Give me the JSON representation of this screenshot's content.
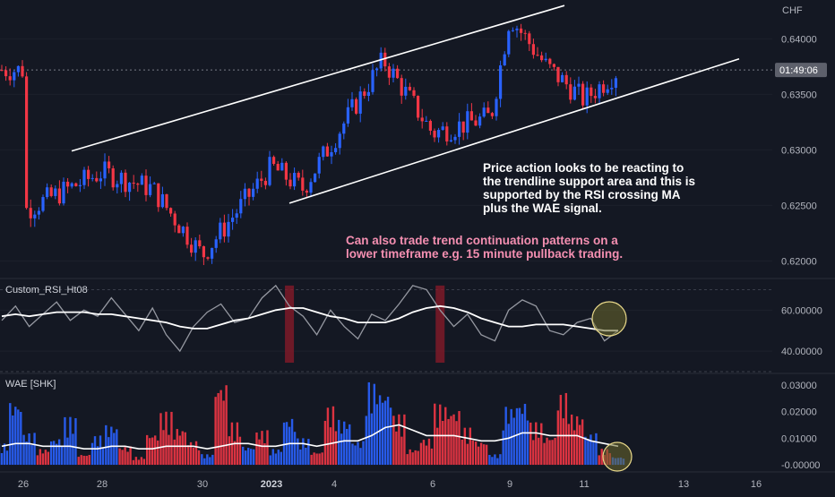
{
  "currency": "CHF",
  "current_time_badge": "01:49:06",
  "rsi_panel_label": "Custom_RSI_Ht08",
  "wae_panel_label": "WAE [SHK]",
  "annotation_white": "Price action looks to be reacting to\nthe trendline support area and this is\nsupported by the RSI crossing MA\nplus the WAE signal.",
  "annotation_pink": "Can also trade trend continuation patterns on a\nlower timeframe e.g. 15 minute pullback trading.",
  "colors": {
    "background": "#141823",
    "up": "#2962ff",
    "down": "#f23645",
    "rsi": "#9598a1",
    "ma": "#ffffff",
    "highlight": "#e8d88a",
    "note_pink": "#f48fb1"
  },
  "chart_data": [
    {
      "type": "candlestick",
      "title": "",
      "yaxis_ticks": [
        "0.62000",
        "0.62500",
        "0.63000",
        "0.63500",
        "0.64000"
      ],
      "ylim": [
        0.6185,
        0.6435
      ],
      "xaxis_ticks": [
        "26",
        "28",
        "30",
        "2023",
        "4",
        "6",
        "9",
        "11",
        "13",
        "16"
      ],
      "key_points": [
        {
          "x": "26",
          "y": 0.6245
        },
        {
          "x": "28",
          "y": 0.628
        },
        {
          "x": "29",
          "y": 0.6265
        },
        {
          "x": "30",
          "y": 0.6205
        },
        {
          "x": "2023",
          "y": 0.6285
        },
        {
          "x": "3",
          "y": 0.6265
        },
        {
          "x": "4",
          "y": 0.631
        },
        {
          "x": "5",
          "y": 0.6381
        },
        {
          "x": "6",
          "y": 0.6315
        },
        {
          "x": "8",
          "y": 0.633
        },
        {
          "x": "9",
          "y": 0.642
        },
        {
          "x": "10",
          "y": 0.6375
        },
        {
          "x": "11",
          "y": 0.6345
        },
        {
          "x": "11.5",
          "y": 0.6372
        }
      ],
      "trendlines": [
        {
          "name": "upper channel",
          "from": {
            "x": "27.5",
            "y": 0.6299
          },
          "to": {
            "x": "10.5",
            "y": 0.643
          }
        },
        {
          "name": "lower support",
          "from": {
            "x": "3.5",
            "y": 0.6252
          },
          "to": {
            "x": "15",
            "y": 0.6382
          }
        }
      ]
    },
    {
      "type": "line",
      "title": "Custom_RSI_Ht08",
      "yaxis_ticks": [
        "40.00000",
        "60.00000"
      ],
      "ylim": [
        30,
        75
      ],
      "series": [
        {
          "name": "",
          "role": "rsi",
          "color": "#9598a1",
          "values": [
            55,
            62,
            52,
            58,
            64,
            55,
            60,
            57,
            66,
            58,
            50,
            61,
            48,
            40,
            52,
            59,
            63,
            54,
            56,
            66,
            72,
            62,
            57,
            48,
            60,
            52,
            46,
            58,
            55,
            63,
            72,
            70,
            60,
            52,
            58,
            48,
            45,
            60,
            65,
            62,
            50,
            48,
            54,
            56,
            45,
            50
          ]
        },
        {
          "name": "",
          "role": "ma",
          "color": "#ffffff",
          "values": [
            57,
            58,
            57,
            58,
            59,
            59,
            59,
            58,
            58,
            57,
            56,
            55,
            54,
            52,
            51,
            51,
            53,
            55,
            56,
            58,
            60,
            61,
            61,
            59,
            57,
            56,
            54,
            54,
            54,
            56,
            59,
            61,
            62,
            61,
            59,
            56,
            54,
            52,
            52,
            53,
            53,
            53,
            52,
            51,
            50,
            50
          ]
        }
      ],
      "highlights": [
        {
          "x_index": 21
        },
        {
          "x_index": 32
        }
      ]
    },
    {
      "type": "bar",
      "title": "WAE [SHK]",
      "yaxis_ticks": [
        "-0.00000",
        "0.01000",
        "0.02000",
        "0.03000"
      ],
      "ylim": [
        -0.002,
        0.034
      ],
      "series": [
        {
          "name": "",
          "role": "histogram",
          "values": [
            0.008,
            0.024,
            0.012,
            0.006,
            0.01,
            0.018,
            0.004,
            0.011,
            0.015,
            0.007,
            0.003,
            0.012,
            0.02,
            0.014,
            0.009,
            0.004,
            0.031,
            0.016,
            0.007,
            0.013,
            0.006,
            0.018,
            0.01,
            0.005,
            0.022,
            0.017,
            0.009,
            0.031,
            0.028,
            0.019,
            0.006,
            0.01,
            0.023,
            0.021,
            0.014,
            0.009,
            0.004,
            0.022,
            0.024,
            0.016,
            0.011,
            0.027,
            0.019,
            0.012,
            0.006,
            0.003
          ],
          "directions": [
            "up",
            "up",
            "up",
            "down",
            "up",
            "up",
            "down",
            "up",
            "up",
            "down",
            "down",
            "down",
            "down",
            "down",
            "down",
            "up",
            "down",
            "down",
            "up",
            "down",
            "up",
            "up",
            "up",
            "down",
            "down",
            "up",
            "up",
            "up",
            "up",
            "down",
            "down",
            "down",
            "down",
            "down",
            "down",
            "down",
            "up",
            "up",
            "up",
            "down",
            "down",
            "down",
            "down",
            "up",
            "down",
            "up"
          ]
        },
        {
          "name": "",
          "role": "signal line",
          "color": "#ffffff",
          "values": [
            0.007,
            0.008,
            0.008,
            0.007,
            0.007,
            0.007,
            0.006,
            0.006,
            0.007,
            0.007,
            0.006,
            0.006,
            0.007,
            0.007,
            0.007,
            0.006,
            0.007,
            0.008,
            0.008,
            0.007,
            0.007,
            0.008,
            0.008,
            0.007,
            0.008,
            0.009,
            0.009,
            0.011,
            0.014,
            0.015,
            0.013,
            0.011,
            0.011,
            0.011,
            0.01,
            0.009,
            0.009,
            0.01,
            0.012,
            0.012,
            0.011,
            0.011,
            0.011,
            0.009,
            0.008,
            0.007
          ]
        }
      ]
    }
  ]
}
